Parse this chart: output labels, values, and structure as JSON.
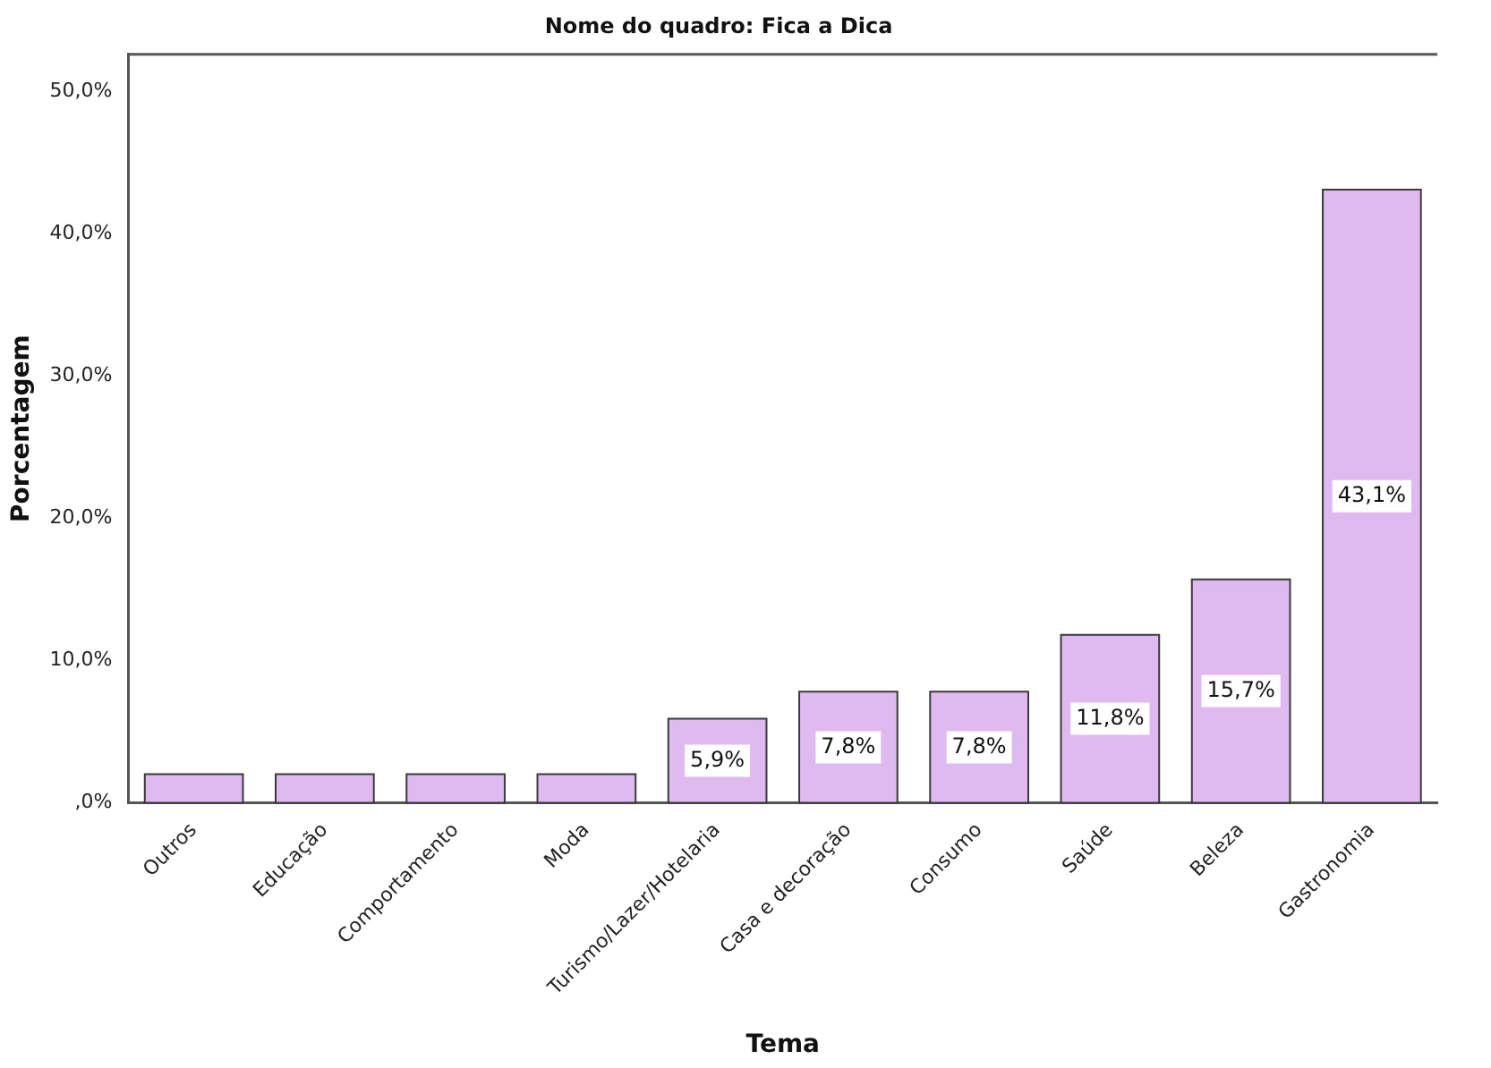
{
  "chart_data": {
    "type": "bar",
    "title": "Nome do quadro: Fica a Dica",
    "xlabel": "Tema",
    "ylabel": "Porcentagem",
    "categories": [
      "Outros",
      "Educação",
      "Comportamento",
      "Moda",
      "Turismo/Lazer/Hotelaria",
      "Casa e decoração",
      "Consumo",
      "Saúde",
      "Beleza",
      "Gastronomia"
    ],
    "values": [
      2.0,
      2.0,
      2.0,
      2.0,
      5.9,
      7.8,
      7.8,
      11.8,
      15.7,
      43.1
    ],
    "value_labels": [
      null,
      null,
      null,
      null,
      "5,9%",
      "7,8%",
      "7,8%",
      "11,8%",
      "15,7%",
      "43,1%"
    ],
    "color": "#dfbaf0",
    "ylim": [
      0,
      52.6
    ],
    "yticks": [
      {
        "value": 0,
        "label": ",0%"
      },
      {
        "value": 10,
        "label": "10,0%"
      },
      {
        "value": 20,
        "label": "20,0%"
      },
      {
        "value": 30,
        "label": "30,0%"
      },
      {
        "value": 40,
        "label": "40,0%"
      },
      {
        "value": 50,
        "label": "50,0%"
      }
    ],
    "grid": false,
    "legend": false
  }
}
